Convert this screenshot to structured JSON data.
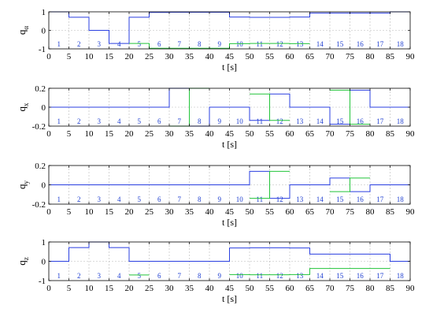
{
  "colors": {
    "series1": "#2a3fe0",
    "series2": "#22c43a",
    "segment_label": "#1f3fd0"
  },
  "segment_labels": [
    "1",
    "2",
    "3",
    "4",
    "5",
    "6",
    "7",
    "8",
    "9",
    "10",
    "11",
    "12",
    "13",
    "14",
    "15",
    "16",
    "17",
    "18"
  ],
  "chart_data": [
    {
      "type": "line",
      "ylabel": "q",
      "ylabel_sub": "α",
      "xlabel": "t [s]",
      "xlim": [
        0,
        90
      ],
      "ylim": [
        -1,
        1
      ],
      "xticks": [
        0,
        5,
        10,
        15,
        20,
        25,
        30,
        35,
        40,
        45,
        50,
        55,
        60,
        65,
        70,
        75,
        80,
        85,
        90
      ],
      "yticks": [
        -1,
        0,
        1
      ],
      "grid": true,
      "series": [
        {
          "x": [
            0,
            5,
            10,
            15,
            20,
            25,
            30,
            45,
            50,
            55,
            60,
            65,
            70,
            75,
            80,
            85,
            90
          ],
          "y": [
            1.0,
            0.71,
            0.0,
            -0.71,
            0.71,
            0.97,
            0.98,
            0.72,
            0.7,
            0.7,
            0.72,
            0.93,
            0.93,
            0.93,
            0.93,
            1.0,
            1.0
          ]
        },
        {
          "x": [
            0,
            20,
            25,
            45,
            50,
            55,
            60,
            65,
            90
          ],
          "y": [
            null,
            -0.71,
            -0.97,
            -0.72,
            -0.71,
            -0.71,
            -0.72,
            null,
            null
          ]
        }
      ]
    },
    {
      "type": "line",
      "ylabel": "q",
      "ylabel_sub": "x",
      "xlabel": "t [s]",
      "xlim": [
        0,
        90
      ],
      "ylim": [
        -0.2,
        0.2
      ],
      "xticks": [
        0,
        5,
        10,
        15,
        20,
        25,
        30,
        35,
        40,
        45,
        50,
        55,
        60,
        65,
        70,
        75,
        80,
        85,
        90
      ],
      "yticks": [
        -0.2,
        0,
        0.2
      ],
      "grid": true,
      "series": [
        {
          "x": [
            0,
            30,
            35,
            40,
            45,
            50,
            55,
            60,
            65,
            70,
            75,
            80,
            85,
            90
          ],
          "y": [
            0,
            0.2,
            -0.2,
            0,
            0,
            -0.14,
            0.14,
            0,
            0,
            -0.18,
            0.18,
            0,
            0,
            0
          ]
        },
        {
          "x": [
            0,
            30,
            35,
            40,
            45,
            50,
            55,
            60,
            65,
            70,
            75,
            80,
            85,
            90
          ],
          "y": [
            null,
            -0.2,
            0.2,
            null,
            null,
            0.14,
            -0.14,
            null,
            null,
            0.18,
            -0.18,
            null,
            null,
            null
          ]
        }
      ]
    },
    {
      "type": "line",
      "ylabel": "q",
      "ylabel_sub": "y",
      "xlabel": "t [s]",
      "xlim": [
        0,
        90
      ],
      "ylim": [
        -0.2,
        0.2
      ],
      "xticks": [
        0,
        5,
        10,
        15,
        20,
        25,
        30,
        35,
        40,
        45,
        50,
        55,
        60,
        65,
        70,
        75,
        80,
        85,
        90
      ],
      "yticks": [
        -0.2,
        0,
        0.2
      ],
      "grid": true,
      "series": [
        {
          "x": [
            0,
            50,
            55,
            60,
            65,
            70,
            75,
            80,
            85,
            90
          ],
          "y": [
            0,
            0.14,
            -0.14,
            0,
            0,
            0.07,
            -0.07,
            0,
            0,
            0
          ]
        },
        {
          "x": [
            0,
            50,
            55,
            60,
            65,
            70,
            75,
            80,
            85,
            90
          ],
          "y": [
            null,
            -0.14,
            0.14,
            null,
            null,
            -0.07,
            0.07,
            null,
            null,
            null
          ]
        }
      ]
    },
    {
      "type": "line",
      "ylabel": "q",
      "ylabel_sub": "z",
      "xlabel": "t [s]",
      "xlim": [
        0,
        90
      ],
      "ylim": [
        -1,
        1
      ],
      "xticks": [
        0,
        5,
        10,
        15,
        20,
        25,
        30,
        35,
        40,
        45,
        50,
        55,
        60,
        65,
        70,
        75,
        80,
        85,
        90
      ],
      "yticks": [
        -1,
        0,
        1
      ],
      "grid": true,
      "series": [
        {
          "x": [
            0,
            5,
            10,
            15,
            20,
            25,
            45,
            50,
            55,
            60,
            65,
            70,
            75,
            80,
            85,
            90
          ],
          "y": [
            0,
            0.71,
            1.0,
            0.71,
            0,
            0,
            0.69,
            0.7,
            0.7,
            0.69,
            0.37,
            0.37,
            0.37,
            0.37,
            0,
            0
          ]
        },
        {
          "x": [
            0,
            20,
            25,
            45,
            50,
            55,
            60,
            65,
            70,
            75,
            80,
            85,
            90
          ],
          "y": [
            null,
            -0.71,
            null,
            -0.69,
            -0.7,
            -0.7,
            -0.69,
            -0.37,
            -0.37,
            -0.37,
            -0.37,
            null,
            null
          ]
        }
      ]
    }
  ]
}
